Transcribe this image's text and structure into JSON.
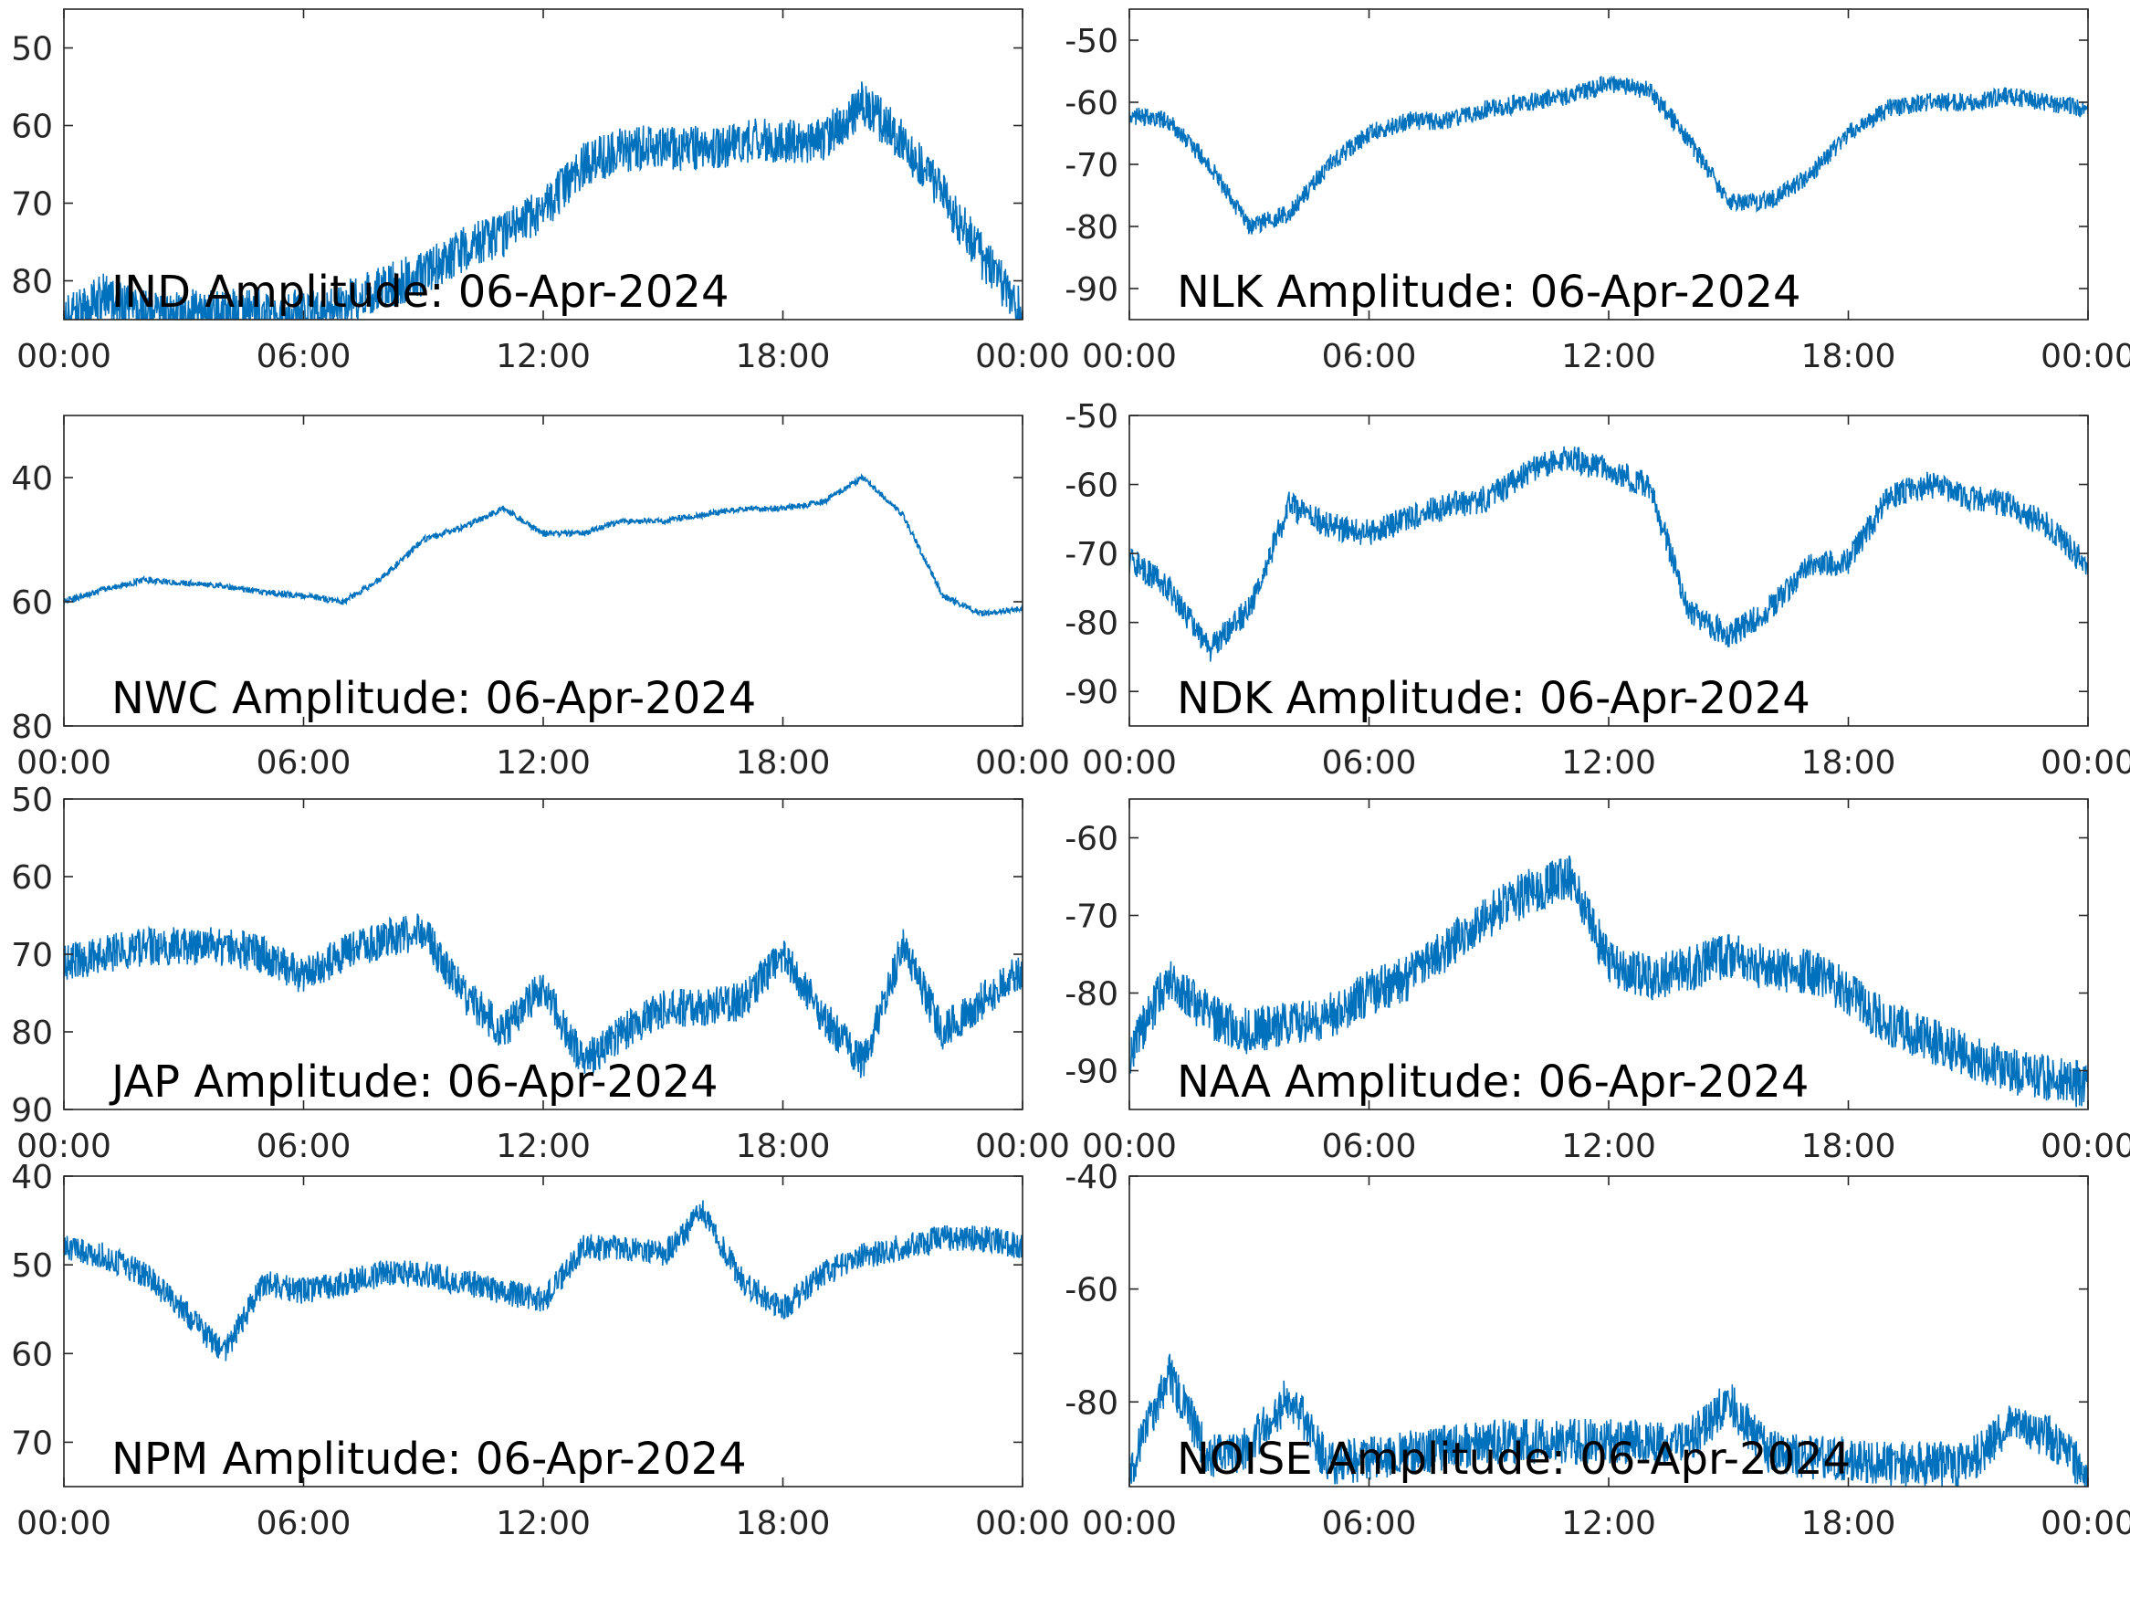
{
  "figure": {
    "line_color": "#0072BD",
    "axis_color": "#262626",
    "x_tick_labels": [
      "00:00",
      "06:00",
      "12:00",
      "18:00",
      "00:00"
    ]
  },
  "chart_data": [
    {
      "type": "line",
      "title": "IND Amplitude: 06-Apr-2024",
      "x": [
        "00:00",
        "01:00",
        "02:00",
        "03:00",
        "04:00",
        "05:00",
        "06:00",
        "07:00",
        "08:00",
        "09:00",
        "10:00",
        "11:00",
        "12:00",
        "13:00",
        "14:00",
        "15:00",
        "16:00",
        "17:00",
        "18:00",
        "19:00",
        "20:00",
        "21:00",
        "22:00",
        "23:00",
        "24:00"
      ],
      "values": [
        -85,
        -82,
        -84,
        -84,
        -84,
        -84,
        -84,
        -83,
        -81,
        -79,
        -76,
        -74,
        -71,
        -65,
        -63,
        -63,
        -63,
        -62,
        -62,
        -62,
        -57,
        -62,
        -69,
        -77,
        -84
      ],
      "noise": 3,
      "yticks": [
        -50,
        -60,
        -70,
        -80
      ],
      "tick_labels": [
        "50",
        "60",
        "70",
        "80"
      ],
      "ylim": [
        -85,
        -45
      ],
      "grid": false
    },
    {
      "type": "line",
      "title": "NLK Amplitude: 06-Apr-2024",
      "x": [
        "00:00",
        "01:00",
        "02:00",
        "03:00",
        "04:00",
        "05:00",
        "06:00",
        "07:00",
        "08:00",
        "09:00",
        "10:00",
        "11:00",
        "12:00",
        "13:00",
        "14:00",
        "15:00",
        "16:00",
        "17:00",
        "18:00",
        "19:00",
        "20:00",
        "21:00",
        "22:00",
        "23:00",
        "24:00"
      ],
      "values": [
        -62,
        -63,
        -70,
        -80,
        -78,
        -70,
        -65,
        -63,
        -63,
        -61,
        -60,
        -59,
        -57,
        -58,
        -66,
        -76,
        -76,
        -72,
        -65,
        -61,
        -60,
        -60,
        -59,
        -60,
        -61
      ],
      "noise": 1.5,
      "yticks": [
        -50,
        -60,
        -70,
        -80,
        -90
      ],
      "tick_labels": [
        "-50",
        "-60",
        "-70",
        "-80",
        "-90"
      ],
      "ylim": [
        -95,
        -45
      ],
      "grid": false
    },
    {
      "type": "line",
      "title": "NWC Amplitude: 06-Apr-2024",
      "x": [
        "00:00",
        "01:00",
        "02:00",
        "03:00",
        "04:00",
        "05:00",
        "06:00",
        "07:00",
        "08:00",
        "09:00",
        "10:00",
        "11:00",
        "12:00",
        "13:00",
        "14:00",
        "15:00",
        "16:00",
        "17:00",
        "18:00",
        "19:00",
        "20:00",
        "21:00",
        "22:00",
        "23:00",
        "24:00"
      ],
      "values": [
        -60,
        -58,
        -56.5,
        -57,
        -57.5,
        -58.5,
        -59,
        -60,
        -56,
        -50,
        -48,
        -45,
        -49,
        -49,
        -47,
        -47,
        -46,
        -45,
        -45,
        -44,
        -40,
        -46,
        -59,
        -62,
        -61
      ],
      "noise": 0.5,
      "yticks": [
        -40,
        -60,
        -80
      ],
      "tick_labels": [
        "40",
        "60",
        "80"
      ],
      "ylim": [
        -80,
        -30
      ],
      "grid": false
    },
    {
      "type": "line",
      "title": "NDK Amplitude: 06-Apr-2024",
      "x": [
        "00:00",
        "01:00",
        "02:00",
        "03:00",
        "04:00",
        "05:00",
        "06:00",
        "07:00",
        "08:00",
        "09:00",
        "10:00",
        "11:00",
        "12:00",
        "13:00",
        "14:00",
        "15:00",
        "16:00",
        "17:00",
        "18:00",
        "19:00",
        "20:00",
        "21:00",
        "22:00",
        "23:00",
        "24:00"
      ],
      "values": [
        -71,
        -75,
        -84,
        -78,
        -63,
        -66,
        -67,
        -65,
        -63,
        -62,
        -58,
        -56,
        -58,
        -60,
        -78,
        -82,
        -78,
        -72,
        -71,
        -62,
        -60,
        -62,
        -63,
        -66,
        -72
      ],
      "noise": 2,
      "yticks": [
        -50,
        -60,
        -70,
        -80,
        -90
      ],
      "tick_labels": [
        "-50",
        "-60",
        "-70",
        "-80",
        "-90"
      ],
      "ylim": [
        -95,
        -50
      ],
      "grid": false
    },
    {
      "type": "line",
      "title": "JAP Amplitude: 06-Apr-2024",
      "x": [
        "00:00",
        "01:00",
        "02:00",
        "03:00",
        "04:00",
        "05:00",
        "06:00",
        "07:00",
        "08:00",
        "09:00",
        "10:00",
        "11:00",
        "12:00",
        "13:00",
        "14:00",
        "15:00",
        "16:00",
        "17:00",
        "18:00",
        "19:00",
        "20:00",
        "21:00",
        "22:00",
        "23:00",
        "24:00"
      ],
      "values": [
        -71,
        -70,
        -69,
        -69,
        -69,
        -70,
        -73,
        -70,
        -68,
        -67,
        -75,
        -80,
        -74,
        -84,
        -80,
        -77,
        -77,
        -76,
        -70,
        -78,
        -84,
        -69,
        -80,
        -76,
        -72
      ],
      "noise": 2.5,
      "yticks": [
        -50,
        -60,
        -70,
        -80,
        -90
      ],
      "tick_labels": [
        "50",
        "60",
        "70",
        "80",
        "90"
      ],
      "ylim": [
        -90,
        -50
      ],
      "grid": false
    },
    {
      "type": "line",
      "title": "NAA Amplitude: 06-Apr-2024",
      "x": [
        "00:00",
        "01:00",
        "02:00",
        "03:00",
        "04:00",
        "05:00",
        "06:00",
        "07:00",
        "08:00",
        "09:00",
        "10:00",
        "11:00",
        "12:00",
        "13:00",
        "14:00",
        "15:00",
        "16:00",
        "17:00",
        "18:00",
        "19:00",
        "20:00",
        "21:00",
        "22:00",
        "23:00",
        "24:00"
      ],
      "values": [
        -88,
        -78,
        -83,
        -85,
        -84,
        -83,
        -80,
        -78,
        -74,
        -70,
        -67,
        -65,
        -76,
        -78,
        -77,
        -75,
        -77,
        -77,
        -80,
        -84,
        -86,
        -88,
        -90,
        -91,
        -92
      ],
      "noise": 3,
      "yticks": [
        -60,
        -70,
        -80,
        -90
      ],
      "tick_labels": [
        "-60",
        "-70",
        "-80",
        "-90"
      ],
      "ylim": [
        -95,
        -55
      ],
      "grid": false
    },
    {
      "type": "line",
      "title": "NPM Amplitude: 06-Apr-2024",
      "x": [
        "00:00",
        "01:00",
        "02:00",
        "03:00",
        "04:00",
        "05:00",
        "06:00",
        "07:00",
        "08:00",
        "09:00",
        "10:00",
        "11:00",
        "12:00",
        "13:00",
        "14:00",
        "15:00",
        "16:00",
        "17:00",
        "18:00",
        "19:00",
        "20:00",
        "21:00",
        "22:00",
        "23:00",
        "24:00"
      ],
      "values": [
        -48,
        -49,
        -51,
        -55,
        -60,
        -52,
        -53,
        -52,
        -51,
        -51,
        -52,
        -53,
        -54,
        -48,
        -48,
        -49,
        -44,
        -52,
        -55,
        -51,
        -49,
        -48,
        -47,
        -47,
        -48
      ],
      "noise": 1.5,
      "yticks": [
        -40,
        -50,
        -60,
        -70
      ],
      "tick_labels": [
        "40",
        "50",
        "60",
        "70"
      ],
      "ylim": [
        -75,
        -40
      ],
      "grid": false
    },
    {
      "type": "line",
      "title": "NOISE Amplitude: 06-Apr-2024",
      "x": [
        "00:00",
        "01:00",
        "02:00",
        "03:00",
        "04:00",
        "05:00",
        "06:00",
        "07:00",
        "08:00",
        "09:00",
        "10:00",
        "11:00",
        "12:00",
        "13:00",
        "14:00",
        "15:00",
        "16:00",
        "17:00",
        "18:00",
        "19:00",
        "20:00",
        "21:00",
        "22:00",
        "23:00",
        "24:00"
      ],
      "values": [
        -92,
        -75,
        -90,
        -88,
        -79,
        -91,
        -90,
        -89,
        -88,
        -87,
        -87,
        -87,
        -87,
        -87,
        -87,
        -80,
        -89,
        -90,
        -90,
        -91,
        -91,
        -91,
        -84,
        -86,
        -93
      ],
      "noise": 4,
      "yticks": [
        -40,
        -60,
        -80
      ],
      "tick_labels": [
        "-40",
        "-60",
        "-80"
      ],
      "ylim": [
        -95,
        -40
      ],
      "grid": false
    }
  ]
}
